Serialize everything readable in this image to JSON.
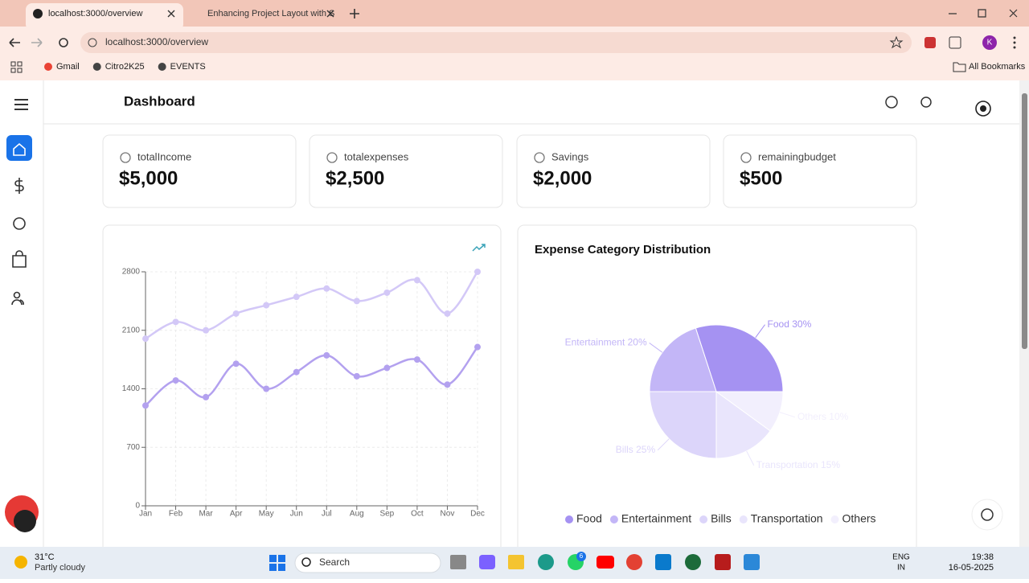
{
  "browser": {
    "tabs": [
      "localhost:3000/overview",
      "Enhancing Project Layout with S"
    ],
    "url": "localhost:3000/overview",
    "bookmarks": [
      "Gmail",
      "Citro2K25",
      "EVENTS"
    ],
    "all_bookmarks": "All Bookmarks",
    "profile": "K"
  },
  "app": {
    "title": "Dashboard",
    "cards": [
      {
        "label": "totalIncome",
        "value": "$5,000"
      },
      {
        "label": "totalexpenses",
        "value": "$2,500"
      },
      {
        "label": "Savings",
        "value": "$2,000"
      },
      {
        "label": "remainingbudget",
        "value": "$500"
      }
    ]
  },
  "chart_data": [
    {
      "type": "line",
      "categories": [
        "Jan",
        "Feb",
        "Mar",
        "Apr",
        "May",
        "Jun",
        "Jul",
        "Aug",
        "Sep",
        "Oct",
        "Nov",
        "Dec"
      ],
      "series": [
        {
          "color": "#d3c8f7",
          "values": [
            2000,
            2200,
            2100,
            2300,
            2400,
            2500,
            2600,
            2450,
            2550,
            2700,
            2300,
            2800
          ]
        },
        {
          "color": "#b3a1ef",
          "values": [
            1200,
            1500,
            1300,
            1700,
            1400,
            1600,
            1800,
            1550,
            1650,
            1750,
            1450,
            1900
          ]
        }
      ],
      "ylim": [
        0,
        2800
      ],
      "yticks": [
        0,
        700,
        1400,
        2100,
        2800
      ],
      "grid": true
    },
    {
      "type": "pie",
      "title": "Expense Category Distribution",
      "categories": [
        "Food",
        "Entertainment",
        "Bills",
        "Transportation",
        "Others"
      ],
      "values": [
        30,
        20,
        25,
        15,
        10
      ],
      "value_labels": [
        "Food 30%",
        "Entertainment 20%",
        "Bills 25%",
        "Transportation 15%",
        "Others 10%"
      ],
      "colors": [
        "#a592f2",
        "#c3b6f7",
        "#dcd5fa",
        "#e9e5fc",
        "#f2effd"
      ]
    }
  ],
  "taskbar": {
    "temperature": "31°C",
    "weather": "Partly cloudy",
    "search": "Search",
    "badge": "6",
    "lang": "ENG",
    "region": "IN",
    "time": "19:38",
    "date": "16-05-2025"
  }
}
